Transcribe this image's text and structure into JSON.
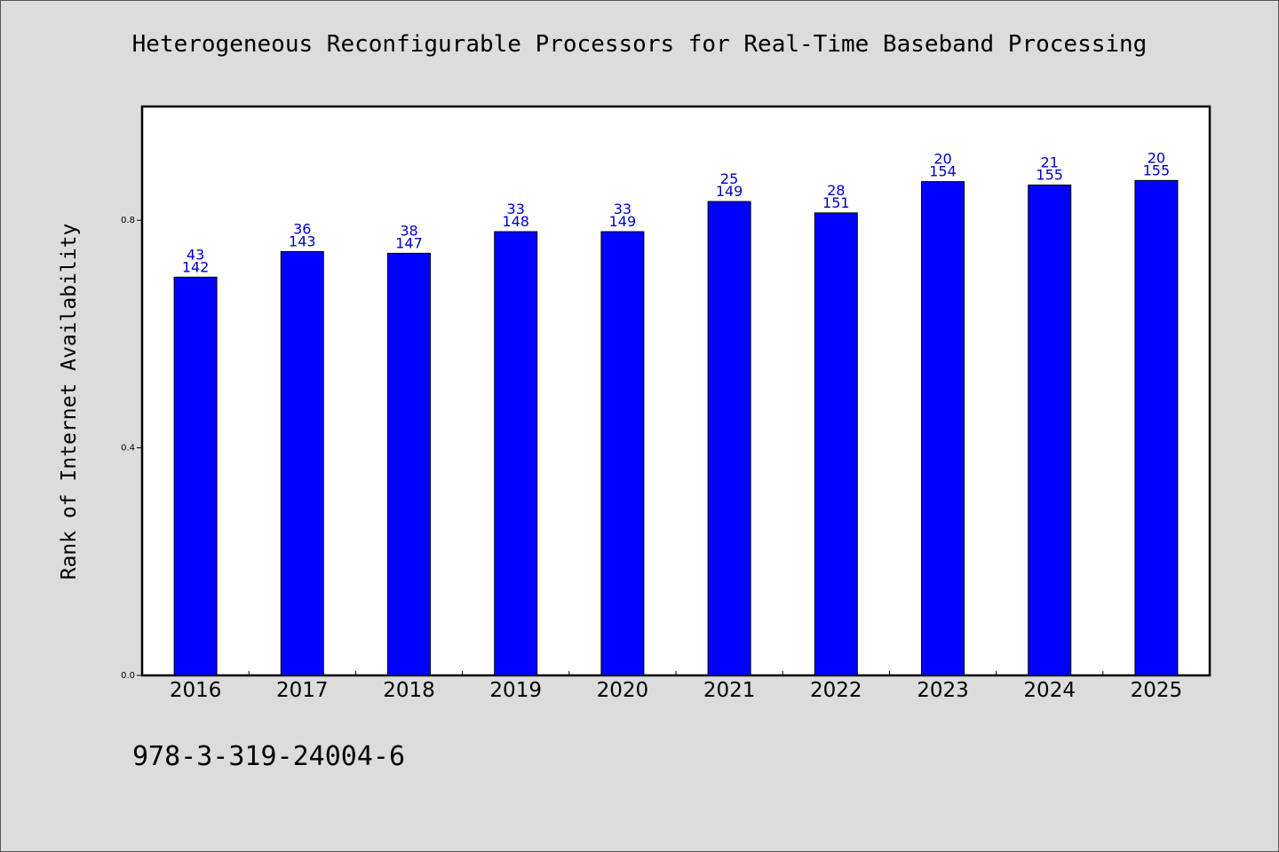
{
  "chart_data": {
    "type": "bar",
    "title": "Heterogeneous Reconfigurable Processors for Real-Time Baseband Processing",
    "xlabel": "",
    "ylabel": "Rank of Internet Availability",
    "categories": [
      "2016",
      "2017",
      "2018",
      "2019",
      "2020",
      "2021",
      "2022",
      "2023",
      "2024",
      "2025"
    ],
    "values": [
      0.7,
      0.745,
      0.742,
      0.78,
      0.78,
      0.833,
      0.813,
      0.868,
      0.862,
      0.87
    ],
    "bar_labels_top": [
      "43",
      "36",
      "38",
      "33",
      "33",
      "25",
      "28",
      "20",
      "21",
      "20"
    ],
    "bar_labels_bottom": [
      "142",
      "143",
      "147",
      "148",
      "149",
      "149",
      "151",
      "154",
      "155",
      "155"
    ],
    "yticks": [
      "0.0",
      "0.4",
      "0.8"
    ],
    "ylim": [
      0,
      1.0
    ],
    "grid": false,
    "legend": "none",
    "colors": {
      "bar": "#0000ff",
      "bar_label": "#0000cc"
    }
  },
  "footer": {
    "isbn": "978-3-319-24004-6"
  }
}
